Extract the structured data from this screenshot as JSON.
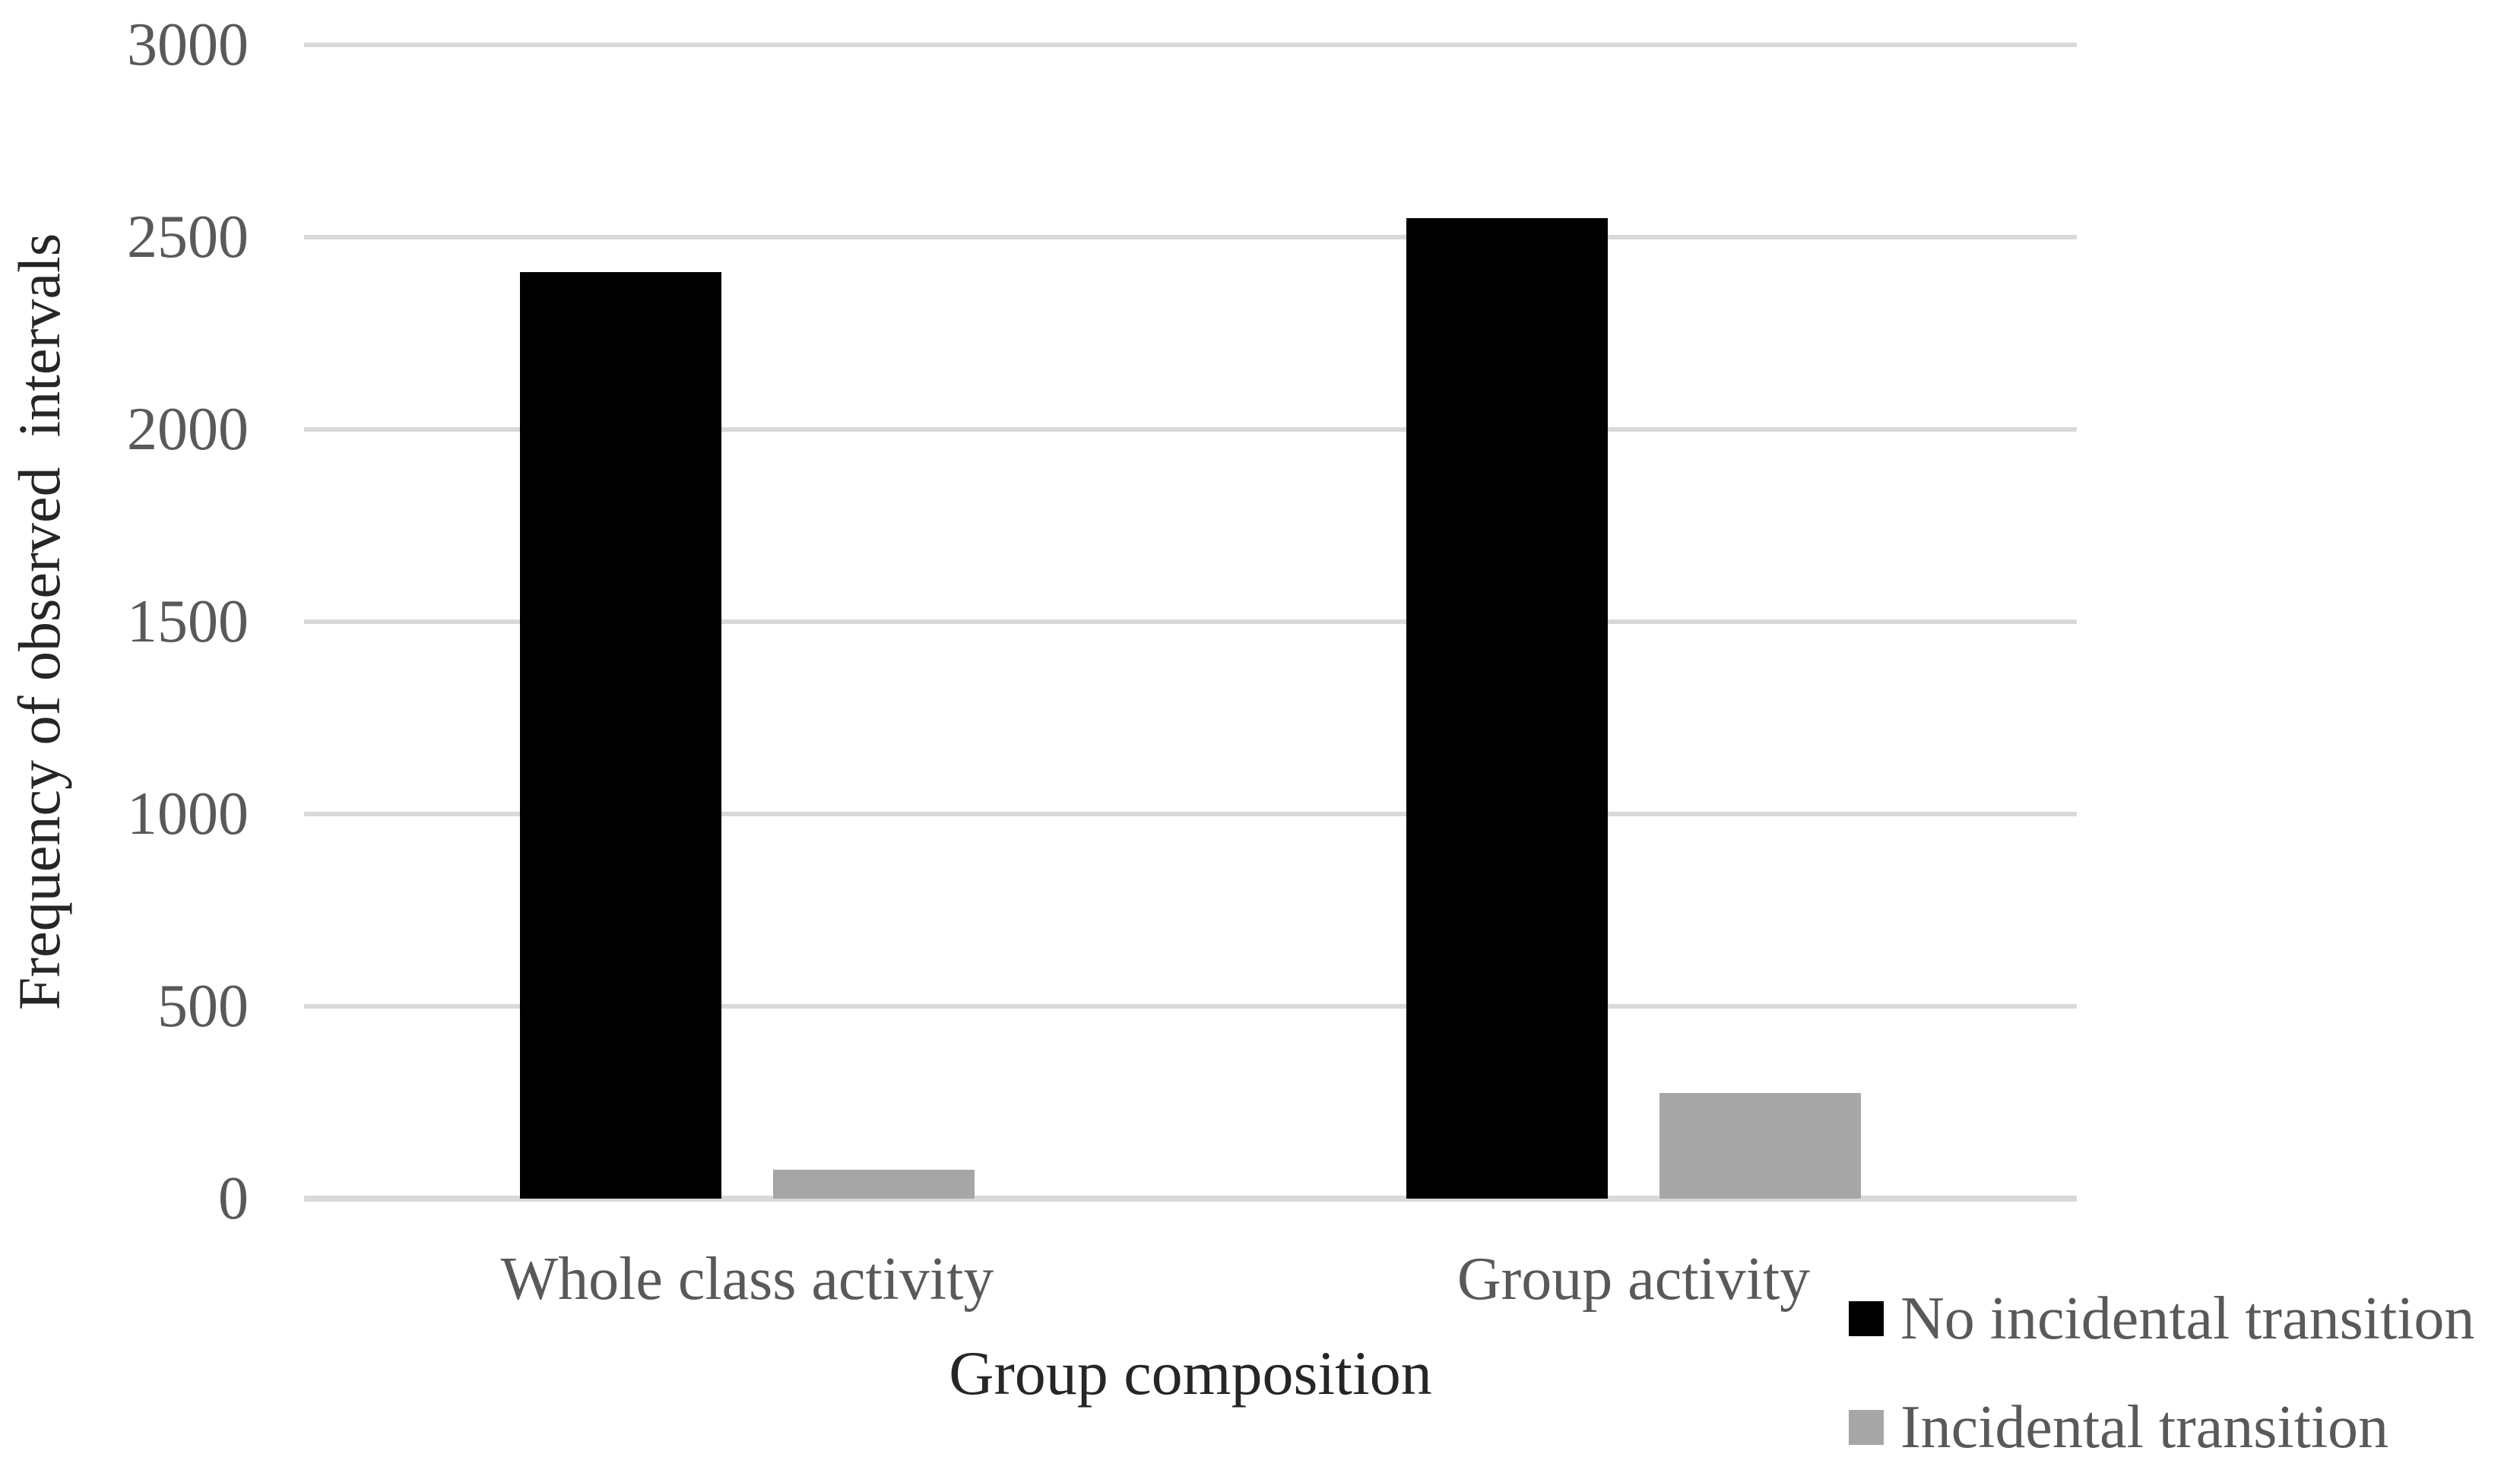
{
  "chart_data": {
    "type": "bar",
    "title": "",
    "categories": [
      "Whole class activity",
      "Group activity"
    ],
    "series": [
      {
        "name": "No incidental transition",
        "color": "#000000",
        "values": [
          2410,
          2550
        ]
      },
      {
        "name": "Incidental transition",
        "color": "#a6a6a6",
        "values": [
          75,
          275
        ]
      }
    ],
    "xlabel": "Group composition",
    "ylabel": "Frequency of observed  intervals",
    "ylim": [
      0,
      3000
    ],
    "yticks": [
      0,
      500,
      1000,
      1500,
      2000,
      2500,
      3000
    ],
    "grid": "horizontal",
    "legend_position": "bottom-right",
    "styles": {
      "gridline_color": "#d9d9d9",
      "tick_label_color": "#595959",
      "category_label_color": "#595959",
      "axis_title_color": "#262626",
      "legend_text_color": "#595959",
      "background": "#ffffff"
    }
  }
}
